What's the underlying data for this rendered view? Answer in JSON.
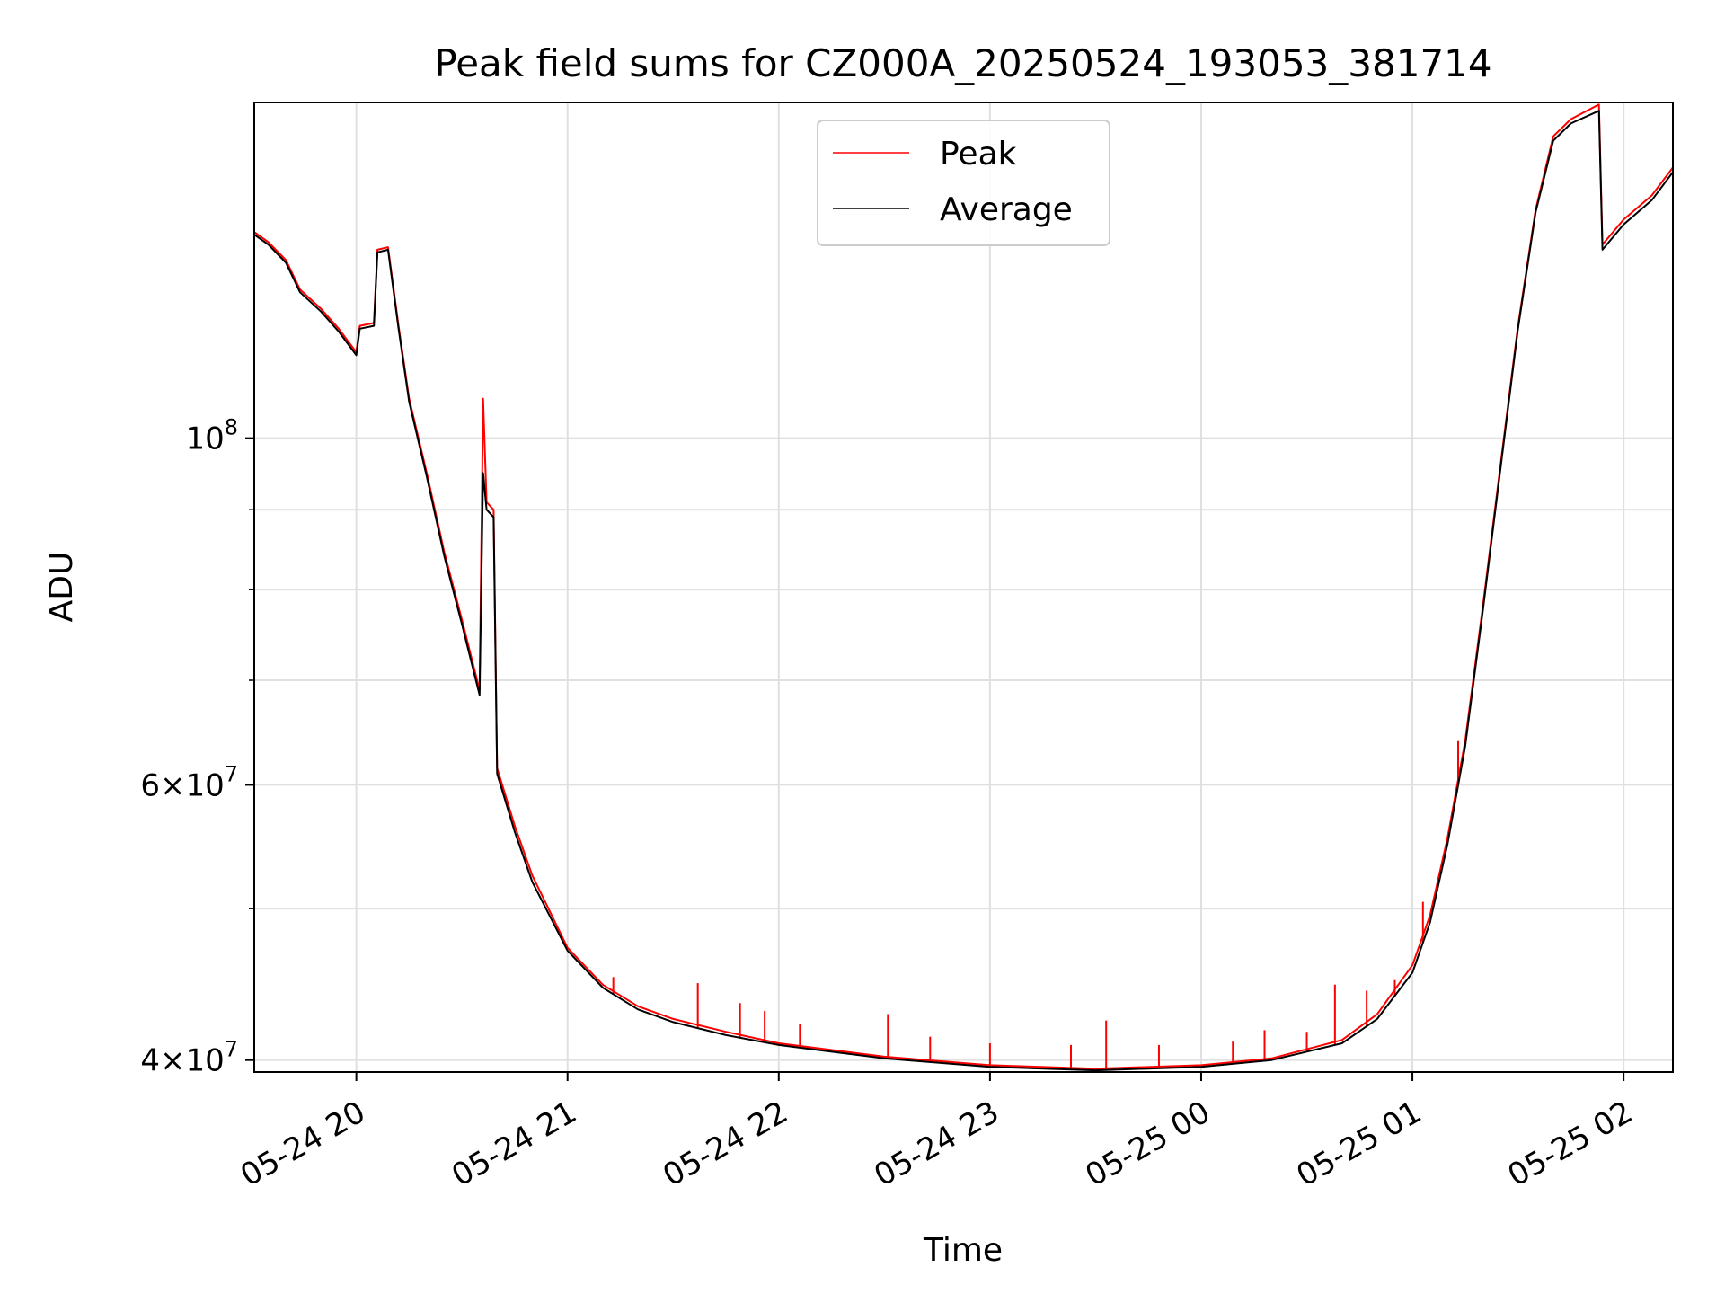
{
  "chart_data": {
    "type": "line",
    "title": "Peak field sums for CZ000A_20250524_193053_381714",
    "xlabel": "Time",
    "ylabel": "ADU",
    "y_scale": "log",
    "grid": true,
    "legend_position": "upper center",
    "xlim": [
      "2025-05-24 19:31",
      "2025-05-25 02:14"
    ],
    "ylim": [
      39300000,
      164000000
    ],
    "x_ticks": [
      {
        "t": "2025-05-24 20:00",
        "label": "05-24 20"
      },
      {
        "t": "2025-05-24 21:00",
        "label": "05-24 21"
      },
      {
        "t": "2025-05-24 22:00",
        "label": "05-24 22"
      },
      {
        "t": "2025-05-24 23:00",
        "label": "05-24 23"
      },
      {
        "t": "2025-05-25 00:00",
        "label": "05-25 00"
      },
      {
        "t": "2025-05-25 01:00",
        "label": "05-25 01"
      },
      {
        "t": "2025-05-25 02:00",
        "label": "05-25 02"
      }
    ],
    "y_major_ticks": [
      {
        "value": 40000000,
        "base": "4",
        "exp": "7"
      },
      {
        "value": 60000000,
        "base": "6",
        "exp": "7"
      },
      {
        "value": 100000000,
        "base": "",
        "exp": "8"
      }
    ],
    "y_minor_gridlines": [
      50000000,
      70000000,
      80000000,
      90000000
    ],
    "series": [
      {
        "name": "Peak",
        "color": "#ff0000",
        "points": [
          [
            "2025-05-24 19:31",
            135500000
          ],
          [
            "2025-05-24 19:35",
            133500000
          ],
          [
            "2025-05-24 19:40",
            130000000
          ],
          [
            "2025-05-24 19:44",
            124500000
          ],
          [
            "2025-05-24 19:50",
            121000000
          ],
          [
            "2025-05-24 19:55",
            117500000
          ],
          [
            "2025-05-24 20:00",
            113500000
          ],
          [
            "2025-05-24 20:01",
            118000000
          ],
          [
            "2025-05-24 20:05",
            118500000
          ],
          [
            "2025-05-24 20:06",
            132000000
          ],
          [
            "2025-05-24 20:09",
            132500000
          ],
          [
            "2025-05-24 20:12",
            118000000
          ],
          [
            "2025-05-24 20:15",
            106000000
          ],
          [
            "2025-05-24 20:20",
            95000000
          ],
          [
            "2025-05-24 20:25",
            84500000
          ],
          [
            "2025-05-24 20:30",
            76500000
          ],
          [
            "2025-05-24 20:35",
            69000000
          ],
          [
            "2025-05-24 20:36",
            106000000
          ],
          [
            "2025-05-24 20:37",
            91000000
          ],
          [
            "2025-05-24 20:39",
            90000000
          ],
          [
            "2025-05-24 20:40",
            61500000
          ],
          [
            "2025-05-24 20:45",
            56500000
          ],
          [
            "2025-05-24 20:50",
            52500000
          ],
          [
            "2025-05-24 21:00",
            47200000
          ],
          [
            "2025-05-24 21:10",
            44700000
          ],
          [
            "2025-05-24 21:20",
            43300000
          ],
          [
            "2025-05-24 21:30",
            42500000
          ],
          [
            "2025-05-24 21:45",
            41700000
          ],
          [
            "2025-05-24 22:00",
            41000000
          ],
          [
            "2025-05-24 22:30",
            40200000
          ],
          [
            "2025-05-24 23:00",
            39700000
          ],
          [
            "2025-05-24 23:30",
            39500000
          ],
          [
            "2025-05-25 00:00",
            39700000
          ],
          [
            "2025-05-25 00:20",
            40100000
          ],
          [
            "2025-05-25 00:40",
            41200000
          ],
          [
            "2025-05-25 00:50",
            42800000
          ],
          [
            "2025-05-25 01:00",
            46000000
          ],
          [
            "2025-05-25 01:05",
            49500000
          ],
          [
            "2025-05-25 01:10",
            55500000
          ],
          [
            "2025-05-25 01:15",
            64000000
          ],
          [
            "2025-05-25 01:20",
            78000000
          ],
          [
            "2025-05-25 01:25",
            96000000
          ],
          [
            "2025-05-25 01:30",
            118000000
          ],
          [
            "2025-05-25 01:35",
            140000000
          ],
          [
            "2025-05-25 01:40",
            156000000
          ],
          [
            "2025-05-25 01:45",
            160000000
          ],
          [
            "2025-05-25 01:53",
            163500000
          ],
          [
            "2025-05-25 01:54",
            133000000
          ],
          [
            "2025-05-25 02:00",
            138000000
          ],
          [
            "2025-05-25 02:08",
            143000000
          ],
          [
            "2025-05-25 02:14",
            149000000
          ]
        ]
      },
      {
        "name": "Average",
        "color": "#000000",
        "points": [
          [
            "2025-05-24 19:31",
            135000000
          ],
          [
            "2025-05-24 19:35",
            133000000
          ],
          [
            "2025-05-24 19:40",
            129500000
          ],
          [
            "2025-05-24 19:44",
            124000000
          ],
          [
            "2025-05-24 19:50",
            120500000
          ],
          [
            "2025-05-24 19:55",
            117000000
          ],
          [
            "2025-05-24 20:00",
            113000000
          ],
          [
            "2025-05-24 20:01",
            117500000
          ],
          [
            "2025-05-24 20:05",
            118000000
          ],
          [
            "2025-05-24 20:06",
            131500000
          ],
          [
            "2025-05-24 20:09",
            132000000
          ],
          [
            "2025-05-24 20:12",
            117500000
          ],
          [
            "2025-05-24 20:15",
            105500000
          ],
          [
            "2025-05-24 20:20",
            94500000
          ],
          [
            "2025-05-24 20:25",
            84000000
          ],
          [
            "2025-05-24 20:30",
            76000000
          ],
          [
            "2025-05-24 20:35",
            68500000
          ],
          [
            "2025-05-24 20:36",
            95000000
          ],
          [
            "2025-05-24 20:37",
            90000000
          ],
          [
            "2025-05-24 20:39",
            89000000
          ],
          [
            "2025-05-24 20:40",
            61000000
          ],
          [
            "2025-05-24 20:45",
            56000000
          ],
          [
            "2025-05-24 20:50",
            52000000
          ],
          [
            "2025-05-24 21:00",
            47000000
          ],
          [
            "2025-05-24 21:10",
            44500000
          ],
          [
            "2025-05-24 21:20",
            43100000
          ],
          [
            "2025-05-24 21:30",
            42300000
          ],
          [
            "2025-05-24 21:45",
            41500000
          ],
          [
            "2025-05-24 22:00",
            40900000
          ],
          [
            "2025-05-24 22:30",
            40100000
          ],
          [
            "2025-05-24 23:00",
            39600000
          ],
          [
            "2025-05-24 23:30",
            39400000
          ],
          [
            "2025-05-25 00:00",
            39600000
          ],
          [
            "2025-05-25 00:20",
            40000000
          ],
          [
            "2025-05-25 00:40",
            41000000
          ],
          [
            "2025-05-25 00:50",
            42500000
          ],
          [
            "2025-05-25 01:00",
            45500000
          ],
          [
            "2025-05-25 01:05",
            49000000
          ],
          [
            "2025-05-25 01:10",
            55000000
          ],
          [
            "2025-05-25 01:15",
            63500000
          ],
          [
            "2025-05-25 01:20",
            77500000
          ],
          [
            "2025-05-25 01:25",
            95500000
          ],
          [
            "2025-05-25 01:30",
            117500000
          ],
          [
            "2025-05-25 01:35",
            139500000
          ],
          [
            "2025-05-25 01:40",
            155000000
          ],
          [
            "2025-05-25 01:45",
            159000000
          ],
          [
            "2025-05-25 01:53",
            162000000
          ],
          [
            "2025-05-25 01:54",
            132000000
          ],
          [
            "2025-05-25 02:00",
            137000000
          ],
          [
            "2025-05-25 02:08",
            142000000
          ],
          [
            "2025-05-25 02:14",
            148000000
          ]
        ]
      }
    ],
    "peak_spikes": [
      [
        "2025-05-24 20:48",
        54000000
      ],
      [
        "2025-05-24 21:13",
        45200000
      ],
      [
        "2025-05-24 21:37",
        44800000
      ],
      [
        "2025-05-24 21:49",
        43500000
      ],
      [
        "2025-05-24 21:56",
        43000000
      ],
      [
        "2025-05-24 22:06",
        42200000
      ],
      [
        "2025-05-24 22:31",
        42800000
      ],
      [
        "2025-05-24 22:43",
        41400000
      ],
      [
        "2025-05-24 23:00",
        41000000
      ],
      [
        "2025-05-24 23:23",
        40900000
      ],
      [
        "2025-05-24 23:33",
        42400000
      ],
      [
        "2025-05-24 23:48",
        40900000
      ],
      [
        "2025-05-25 00:09",
        41100000
      ],
      [
        "2025-05-25 00:18",
        41800000
      ],
      [
        "2025-05-25 00:30",
        41700000
      ],
      [
        "2025-05-25 00:38",
        44700000
      ],
      [
        "2025-05-25 00:47",
        44300000
      ],
      [
        "2025-05-25 00:55",
        45000000
      ],
      [
        "2025-05-25 01:03",
        50500000
      ],
      [
        "2025-05-25 01:13",
        64000000
      ]
    ]
  },
  "legend": {
    "peak_label": "Peak",
    "average_label": "Average"
  }
}
